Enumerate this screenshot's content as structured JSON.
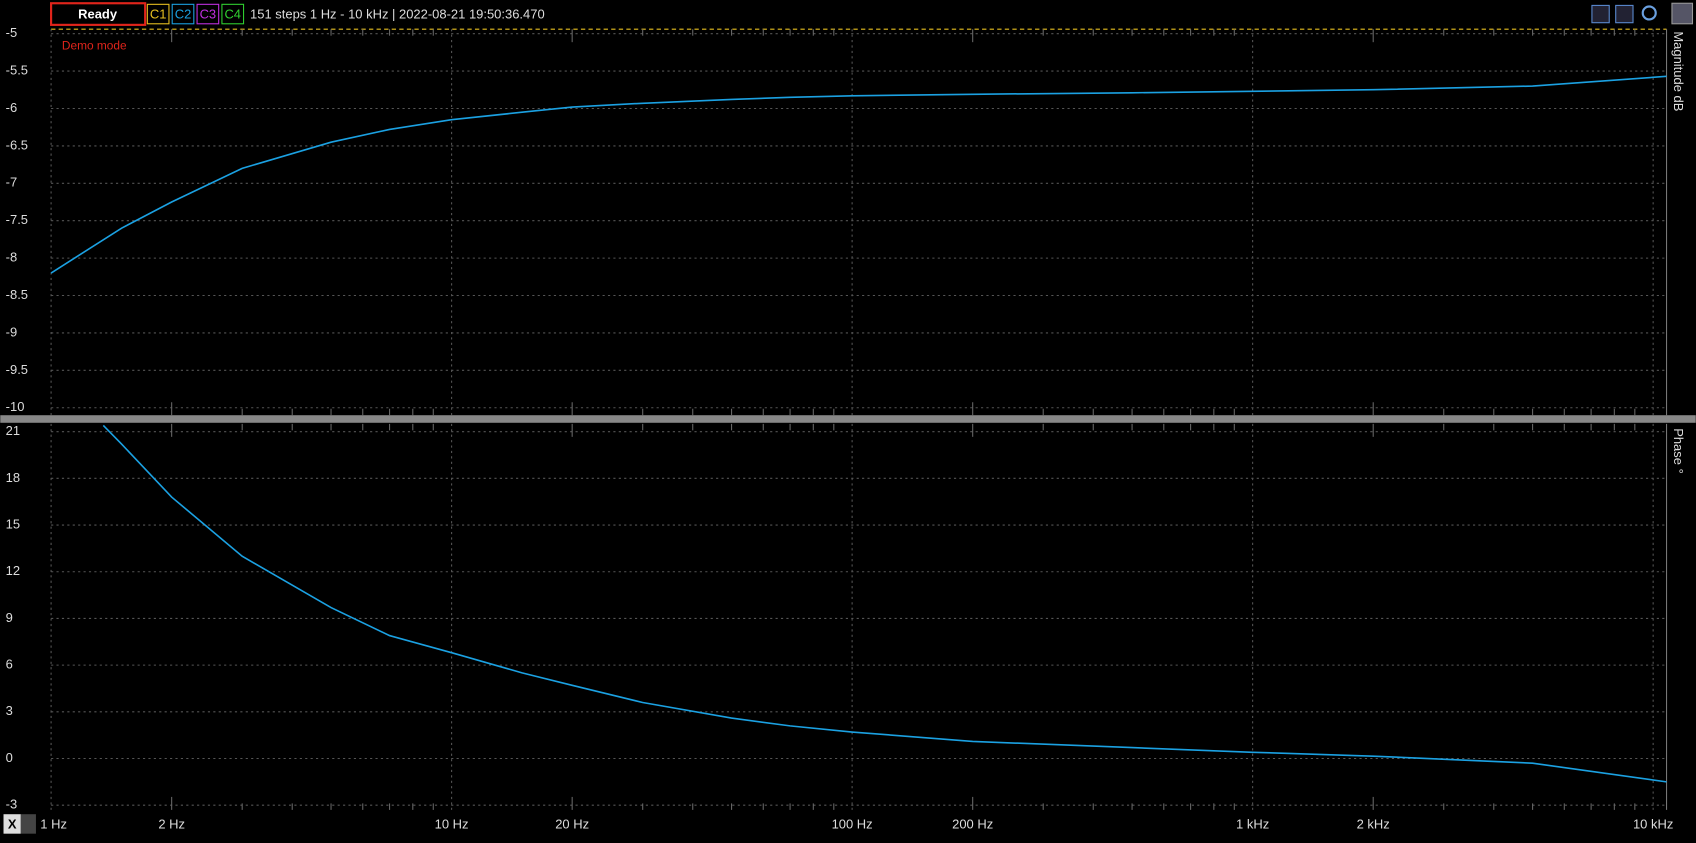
{
  "toolbar": {
    "status": "Ready",
    "channels": [
      "C1",
      "C2",
      "C3",
      "C4"
    ],
    "info": "151 steps  1 Hz - 10 kHz | 2022-08-21 19:50:36.470",
    "x_selector": "X"
  },
  "chart_data": [
    {
      "type": "line",
      "annotation": "Demo mode",
      "y_label": "Magnitude  dB",
      "log_x": true,
      "grid": true,
      "x": [
        1,
        1.5,
        2,
        3,
        5,
        7,
        10,
        15,
        20,
        30,
        50,
        70,
        100,
        200,
        500,
        1000,
        2000,
        5000,
        10800
      ],
      "series": [
        {
          "name": "C2",
          "color": "#1ba1e2",
          "values": [
            -8.2,
            -7.6,
            -7.25,
            -6.8,
            -6.45,
            -6.28,
            -6.15,
            -6.05,
            -5.98,
            -5.93,
            -5.88,
            -5.85,
            -5.83,
            -5.81,
            -5.79,
            -5.77,
            -5.75,
            -5.7,
            -5.57
          ]
        }
      ],
      "ylim": [
        -10.1,
        -4.94
      ],
      "yticks": [
        -5,
        -5.5,
        -6,
        -6.5,
        -7,
        -7.5,
        -8,
        -8.5,
        -9,
        -9.5,
        -10
      ]
    },
    {
      "type": "line",
      "y_label": "Phase  °",
      "log_x": true,
      "grid": true,
      "x": [
        1.35,
        1.5,
        2,
        3,
        5,
        7,
        10,
        15,
        20,
        30,
        50,
        70,
        100,
        200,
        500,
        1000,
        2000,
        5000,
        10800
      ],
      "series": [
        {
          "name": "C2",
          "color": "#1ba1e2",
          "values": [
            21.4,
            20.2,
            16.8,
            13,
            9.7,
            7.9,
            6.8,
            5.5,
            4.7,
            3.6,
            2.6,
            2.1,
            1.7,
            1.1,
            0.7,
            0.4,
            0.15,
            -0.3,
            -1.5
          ]
        }
      ],
      "ylim": [
        -3.3,
        21.5
      ],
      "yticks": [
        -3,
        0,
        3,
        6,
        9,
        12,
        15,
        18,
        21
      ],
      "xlim": [
        1,
        10800
      ],
      "xticks": [
        {
          "value": 1,
          "label": "1 Hz"
        },
        {
          "value": 2,
          "label": "2 Hz"
        },
        {
          "value": 10,
          "label": "10 Hz"
        },
        {
          "value": 20,
          "label": "20 Hz"
        },
        {
          "value": 100,
          "label": "100 Hz"
        },
        {
          "value": 200,
          "label": "200 Hz"
        },
        {
          "value": 1000,
          "label": "1 kHz"
        },
        {
          "value": 2000,
          "label": "2 kHz"
        },
        {
          "value": 10000,
          "label": "10 kHz"
        }
      ],
      "xminor": [
        3,
        4,
        5,
        6,
        7,
        8,
        9,
        30,
        40,
        50,
        60,
        70,
        80,
        90,
        300,
        400,
        500,
        600,
        700,
        800,
        900,
        3000,
        4000,
        5000,
        6000,
        7000,
        8000,
        9000
      ]
    }
  ]
}
